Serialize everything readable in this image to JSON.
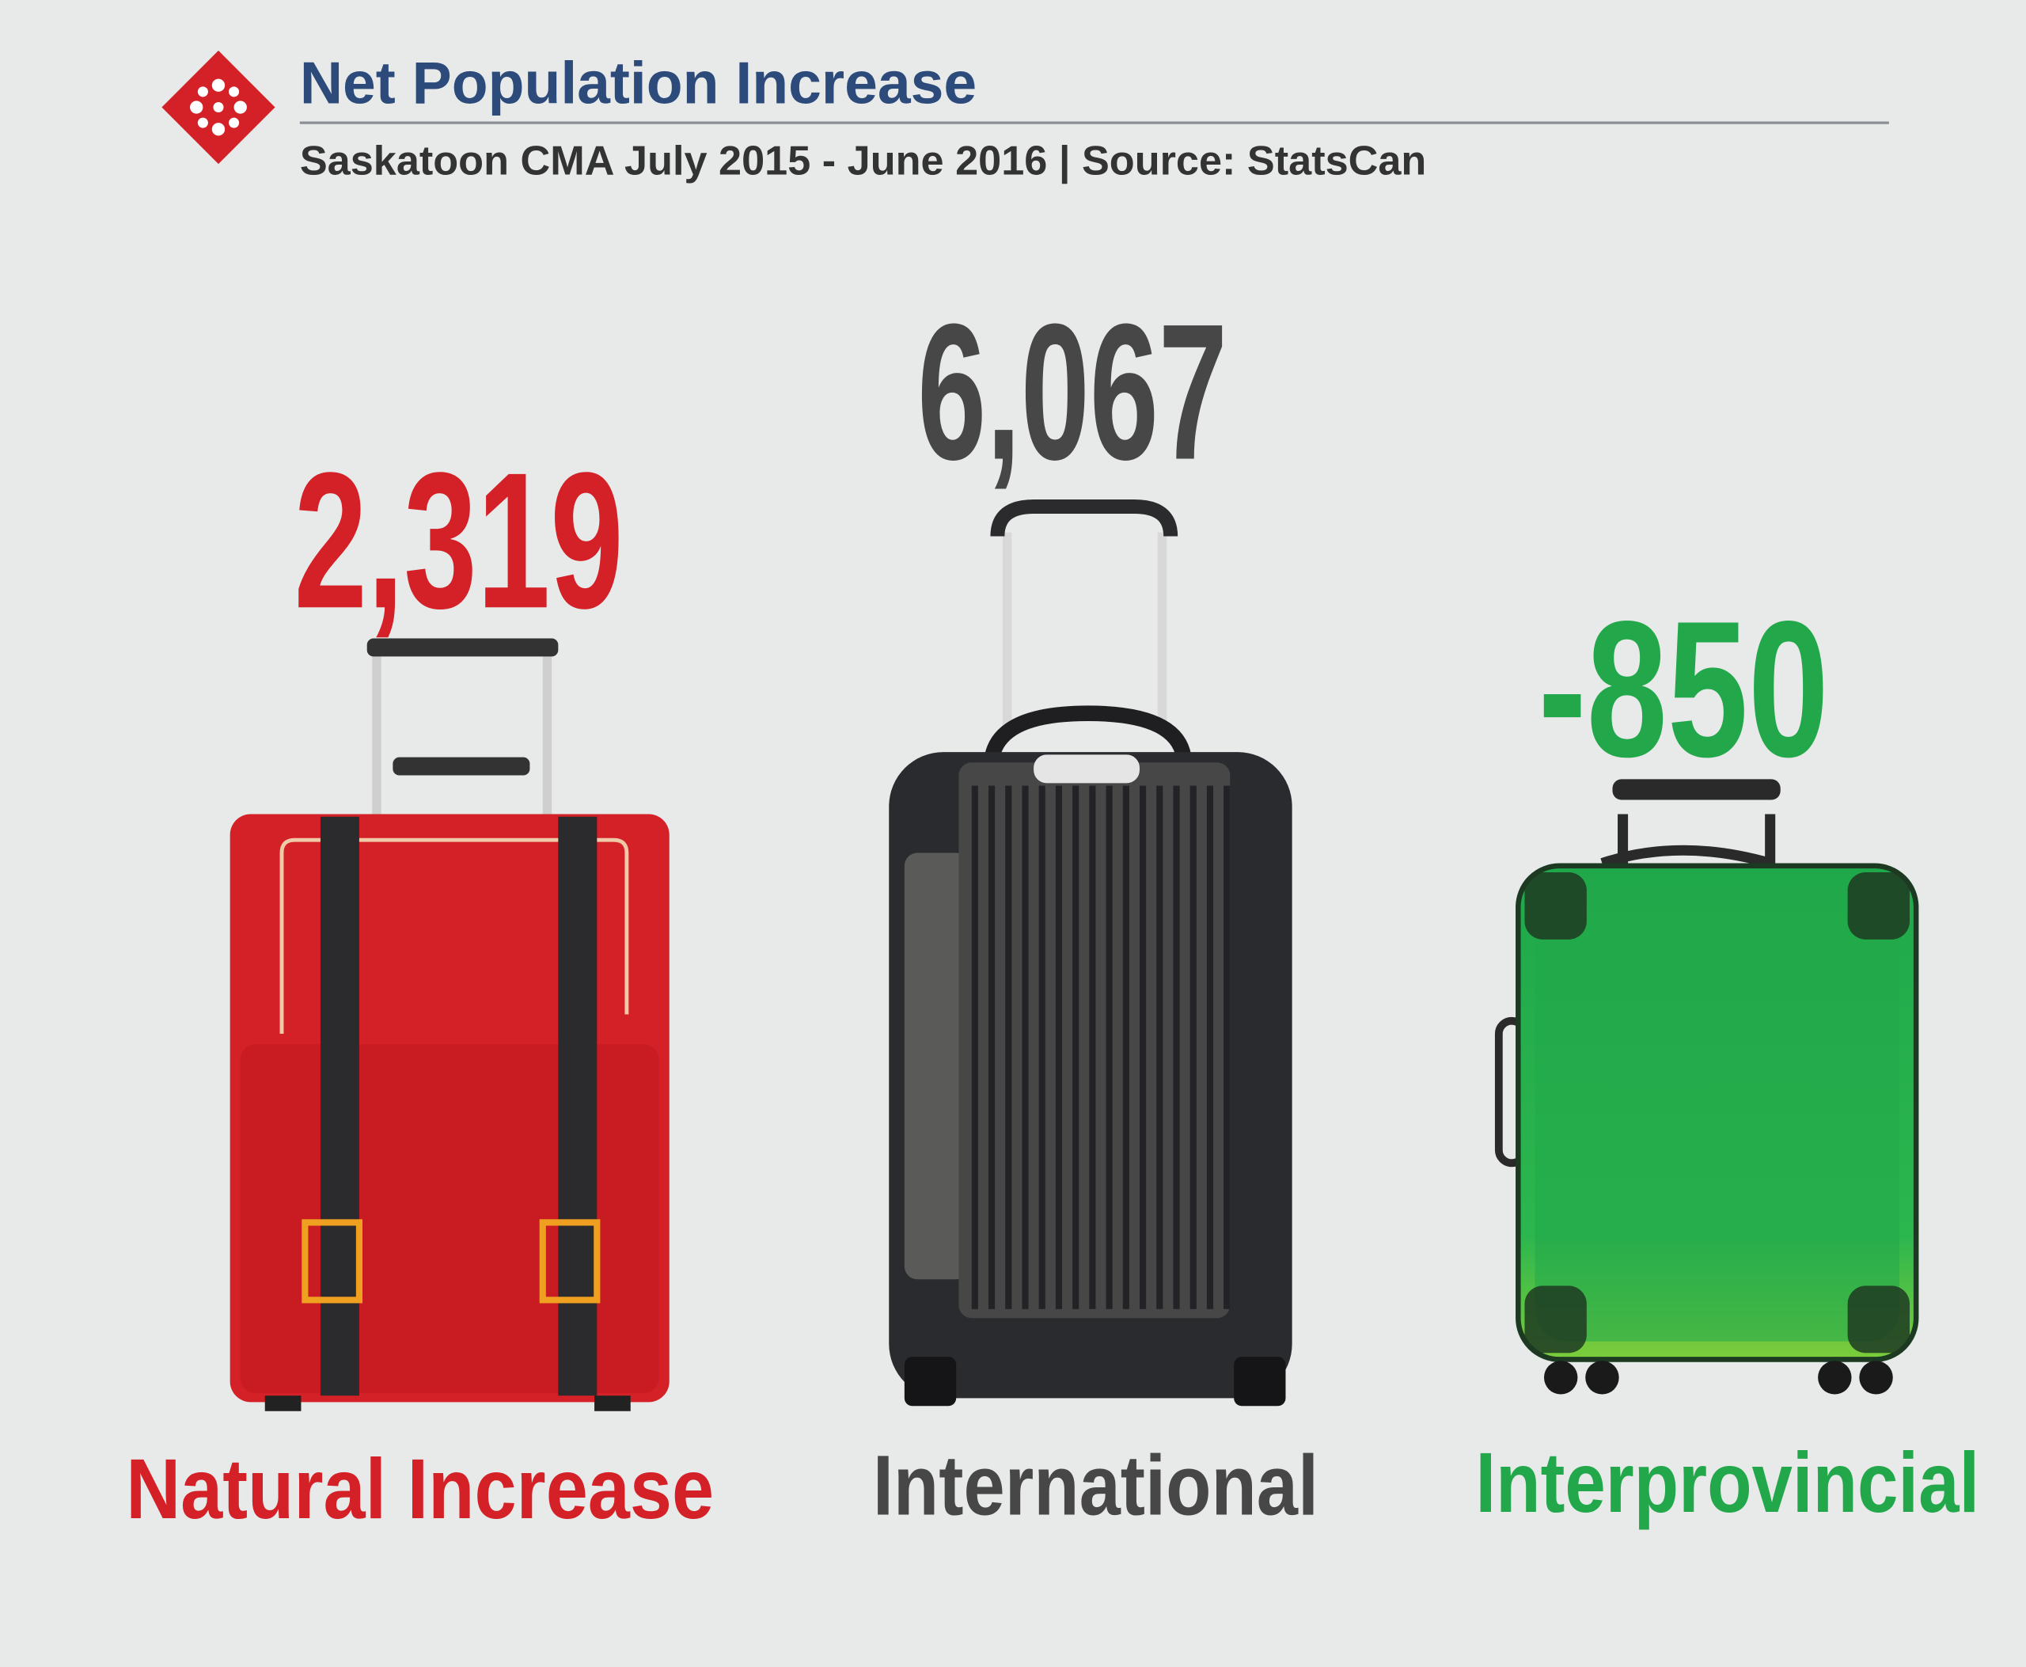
{
  "chart_data": {
    "type": "pictogram",
    "title": "Net Population Increase",
    "subtitle": "Saskatoon CMA July 2015 - June 2016 | Source: StatsCan",
    "categories": [
      "Natural Increase",
      "International",
      "Interprovincial"
    ],
    "values": [
      2319,
      6067,
      -850
    ],
    "value_labels": [
      "2,319",
      "6,067",
      "-850"
    ],
    "colors": [
      "#d42027",
      "#474747",
      "#22a84a"
    ]
  }
}
